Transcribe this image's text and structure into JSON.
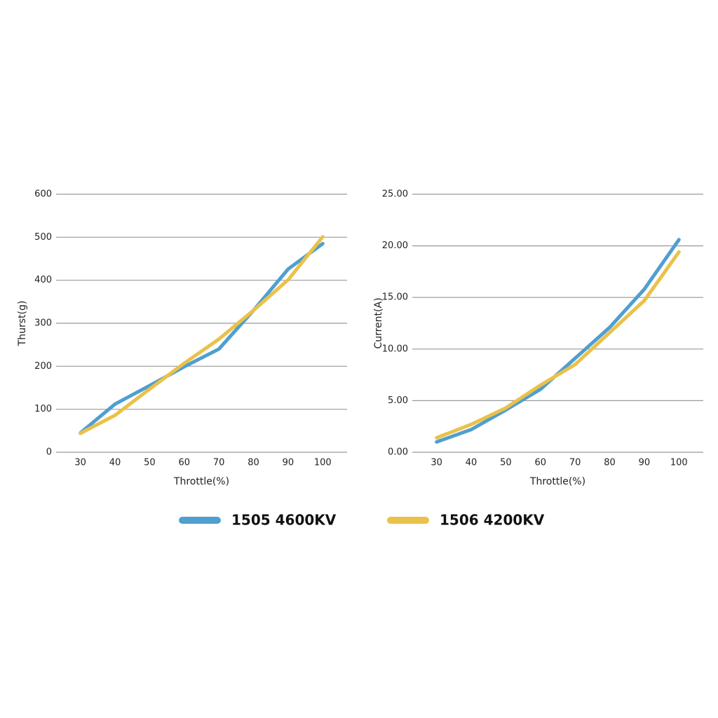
{
  "chart_data": [
    {
      "type": "line",
      "y_label": "Thurst(g)",
      "x_label": "Throttle(%)",
      "categories": [
        "30",
        "40",
        "50",
        "60",
        "70",
        "80",
        "90",
        "100"
      ],
      "ylim": [
        0,
        600
      ],
      "yticks": [
        0,
        100,
        200,
        300,
        400,
        500,
        600
      ],
      "grid": true,
      "series": [
        {
          "name": "1505 4600KV",
          "color": "#4f9fcf",
          "values": [
            45,
            112,
            155,
            199,
            240,
            330,
            426,
            485
          ]
        },
        {
          "name": "1506 4200KV",
          "color": "#eac14a",
          "values": [
            44,
            86,
            147,
            207,
            263,
            330,
            401,
            501
          ]
        }
      ]
    },
    {
      "type": "line",
      "y_label": "Current(A)",
      "x_label": "Throttle(%)",
      "categories": [
        "30",
        "40",
        "50",
        "60",
        "70",
        "80",
        "90",
        "100"
      ],
      "ylim": [
        0,
        25
      ],
      "yticks": [
        {
          "value": 0,
          "label": "0.00"
        },
        {
          "value": 5,
          "label": "5.00"
        },
        {
          "value": 10,
          "label": "10.00"
        },
        {
          "value": 15,
          "label": "15.00"
        },
        {
          "value": 20,
          "label": "20.00"
        },
        {
          "value": 25,
          "label": "25.00"
        }
      ],
      "grid": true,
      "series": [
        {
          "values": [
            1.0,
            2.2,
            4.1,
            6.1,
            9.1,
            12.1,
            15.8,
            20.6
          ]
        },
        {
          "values": [
            1.4,
            2.7,
            4.3,
            6.5,
            8.5,
            11.6,
            14.7,
            19.4
          ]
        }
      ]
    }
  ]
}
